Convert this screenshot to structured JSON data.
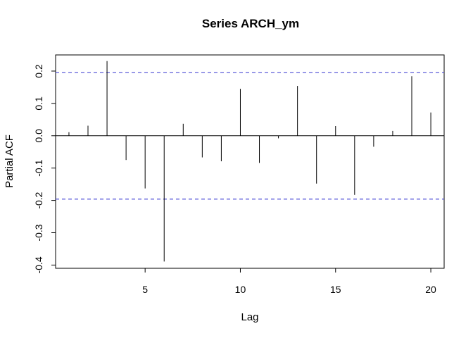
{
  "chart_data": {
    "type": "bar",
    "title": "Series  ARCH_ym",
    "xlabel": "Lag",
    "ylabel": "Partial ACF",
    "xlim": [
      0.3,
      20.7
    ],
    "ylim": [
      -0.41,
      0.25
    ],
    "x_ticks": [
      5,
      10,
      15,
      20
    ],
    "x_tick_labels": [
      "5",
      "10",
      "15",
      "20"
    ],
    "y_ticks": [
      -0.4,
      -0.3,
      -0.2,
      -0.1,
      0.0,
      0.1,
      0.2
    ],
    "y_tick_labels": [
      "-0.4",
      "-0.3",
      "-0.2",
      "-0.1",
      "0.0",
      "0.1",
      "0.2"
    ],
    "lags": [
      1,
      2,
      3,
      4,
      5,
      6,
      7,
      8,
      9,
      10,
      11,
      12,
      13,
      14,
      15,
      16,
      17,
      18,
      19,
      20
    ],
    "values": [
      0.011,
      0.031,
      0.231,
      -0.075,
      -0.163,
      -0.389,
      0.037,
      -0.067,
      -0.079,
      0.145,
      -0.084,
      -0.008,
      0.154,
      -0.148,
      0.03,
      -0.183,
      -0.034,
      0.015,
      0.184,
      0.072
    ],
    "confidence_bound": 0.196,
    "colors": {
      "spike": "#000000",
      "bound": "#4d4dd6",
      "axis": "#000000"
    },
    "grid": false,
    "legend": "none"
  }
}
